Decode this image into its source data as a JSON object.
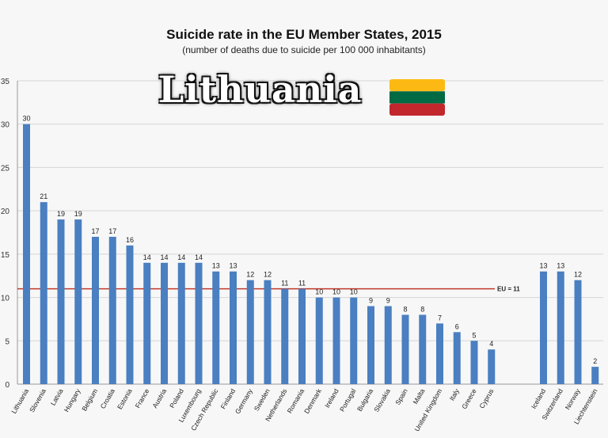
{
  "overlay_text": "Lithuania",
  "flag_colors": [
    "#FDB913",
    "#006A44",
    "#C1272D"
  ],
  "chart_data": {
    "type": "bar",
    "title": "Suicide rate in the EU Member States,  2015",
    "subtitle": "(number of deaths due to suicide per 100 000 inhabitants)",
    "xlabel": "",
    "ylabel": "",
    "ylim": [
      0,
      35
    ],
    "yticks": [
      0,
      5,
      10,
      15,
      20,
      25,
      30,
      35
    ],
    "grid": true,
    "bar_color": "#4a7fc1",
    "reference_line": {
      "value": 11,
      "label": "EU = 11",
      "color": "#c0392b"
    },
    "categories": [
      "Lithuania",
      "Slovenia",
      "Latvia",
      "Hungary",
      "Belgium",
      "Croatia",
      "Estonia",
      "France",
      "Austria",
      "Poland",
      "Luxembourg",
      "Czech Republic",
      "Finland",
      "Germany",
      "Sweden",
      "Netherlands",
      "Romania",
      "Denmark",
      "Ireland",
      "Portugal",
      "Bulgaria",
      "Slovakia",
      "Spain",
      "Malta",
      "United Kingdom",
      "Italy",
      "Greece",
      "Cyprus",
      "Iceland",
      "Switzerland",
      "Norway",
      "Liechtenstein"
    ],
    "values": [
      30,
      21,
      19,
      19,
      17,
      17,
      16,
      14,
      14,
      14,
      14,
      13,
      13,
      12,
      12,
      11,
      11,
      10,
      10,
      10,
      9,
      9,
      8,
      8,
      7,
      6,
      5,
      4,
      13,
      13,
      12,
      2
    ]
  }
}
